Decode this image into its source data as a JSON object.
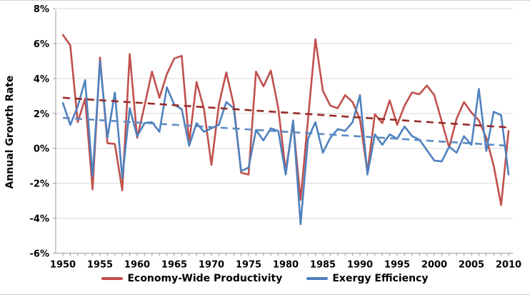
{
  "chart_data": {
    "type": "line",
    "title": "",
    "ylabel": "Annual Growth Rate",
    "xlabel": "",
    "grid": "horizontal",
    "legend_position": "bottom",
    "ylim": [
      -6,
      8
    ],
    "y_ticks": [
      8,
      6,
      4,
      2,
      0,
      -2,
      -4,
      -6
    ],
    "y_tick_labels": [
      "8%",
      "6%",
      "4%",
      "2%",
      "0%",
      "-2%",
      "-4%",
      "-6%"
    ],
    "x_range": [
      1950,
      2010
    ],
    "x_tick_labels": [
      "1950",
      "1955",
      "1960",
      "1965",
      "1970",
      "1975",
      "1980",
      "1985",
      "1990",
      "1995",
      "2000",
      "2005",
      "2010"
    ],
    "x_label_years": [
      1950,
      1955,
      1960,
      1965,
      1970,
      1975,
      1980,
      1985,
      1990,
      1995,
      2000,
      2005,
      2010
    ],
    "years": [
      1950,
      1951,
      1952,
      1953,
      1954,
      1955,
      1956,
      1957,
      1958,
      1959,
      1960,
      1961,
      1962,
      1963,
      1964,
      1965,
      1966,
      1967,
      1968,
      1969,
      1970,
      1971,
      1972,
      1973,
      1974,
      1975,
      1976,
      1977,
      1978,
      1979,
      1980,
      1981,
      1982,
      1983,
      1984,
      1985,
      1986,
      1987,
      1988,
      1989,
      1990,
      1991,
      1992,
      1993,
      1994,
      1995,
      1996,
      1997,
      1998,
      1999,
      2000,
      2001,
      2002,
      2003,
      2004,
      2005,
      2006,
      2007,
      2008,
      2009,
      2010
    ],
    "series": [
      {
        "name": "Economy-Wide Productivity",
        "color": "#C0504D",
        "style": "solid",
        "values": [
          6.5,
          5.9,
          1.5,
          2.85,
          -2.35,
          5.2,
          0.3,
          0.25,
          -2.4,
          5.4,
          0.6,
          2.45,
          4.4,
          2.9,
          4.25,
          5.15,
          5.3,
          0.3,
          3.8,
          2.25,
          -0.95,
          2.5,
          4.35,
          2.5,
          -1.4,
          -1.5,
          4.4,
          3.55,
          4.45,
          2.3,
          -1.3,
          1.45,
          -2.95,
          1.65,
          6.25,
          3.3,
          2.45,
          2.3,
          3.05,
          2.65,
          1.65,
          -1.35,
          1.95,
          1.45,
          2.75,
          1.35,
          2.45,
          3.2,
          3.1,
          3.6,
          3.05,
          1.55,
          0.05,
          1.7,
          2.65,
          2.05,
          1.6,
          0.6,
          -1.0,
          -3.25,
          1.0
        ]
      },
      {
        "name": "Exergy Efficiency",
        "color": "#4F81BD",
        "style": "solid",
        "values": [
          2.6,
          1.35,
          2.4,
          3.9,
          -1.6,
          5.0,
          0.6,
          3.2,
          -1.7,
          2.3,
          0.7,
          1.45,
          1.5,
          0.95,
          3.5,
          2.5,
          2.25,
          0.15,
          1.45,
          0.95,
          1.15,
          1.35,
          2.65,
          2.3,
          -1.3,
          -1.1,
          1.05,
          0.45,
          1.15,
          1.0,
          -1.5,
          1.6,
          -4.35,
          0.55,
          1.5,
          -0.25,
          0.6,
          1.1,
          1.0,
          1.5,
          3.05,
          -1.5,
          0.8,
          0.2,
          0.8,
          0.55,
          1.25,
          0.7,
          0.5,
          -0.1,
          -0.7,
          -0.75,
          0.1,
          -0.25,
          0.7,
          0.2,
          3.4,
          -0.15,
          2.1,
          1.9,
          -1.5
        ]
      }
    ],
    "trendlines": [
      {
        "for": "Economy-Wide Productivity",
        "color": "#972B27",
        "style": "dashed",
        "start_value": 2.9,
        "end_value": 1.2
      },
      {
        "for": "Exergy Efficiency",
        "color": "#5B8BC4",
        "style": "dashed",
        "start_value": 1.75,
        "end_value": 0.15
      }
    ],
    "legend": [
      {
        "label": "Economy-Wide Productivity",
        "color": "#C0504D"
      },
      {
        "label": "Exergy Efficiency",
        "color": "#4F81BD"
      }
    ],
    "colors": {
      "gridline": "#D9D9D9",
      "axis_line": "#9B9B9B",
      "tick_text": "#000000",
      "background": "#FFFFFF"
    }
  }
}
